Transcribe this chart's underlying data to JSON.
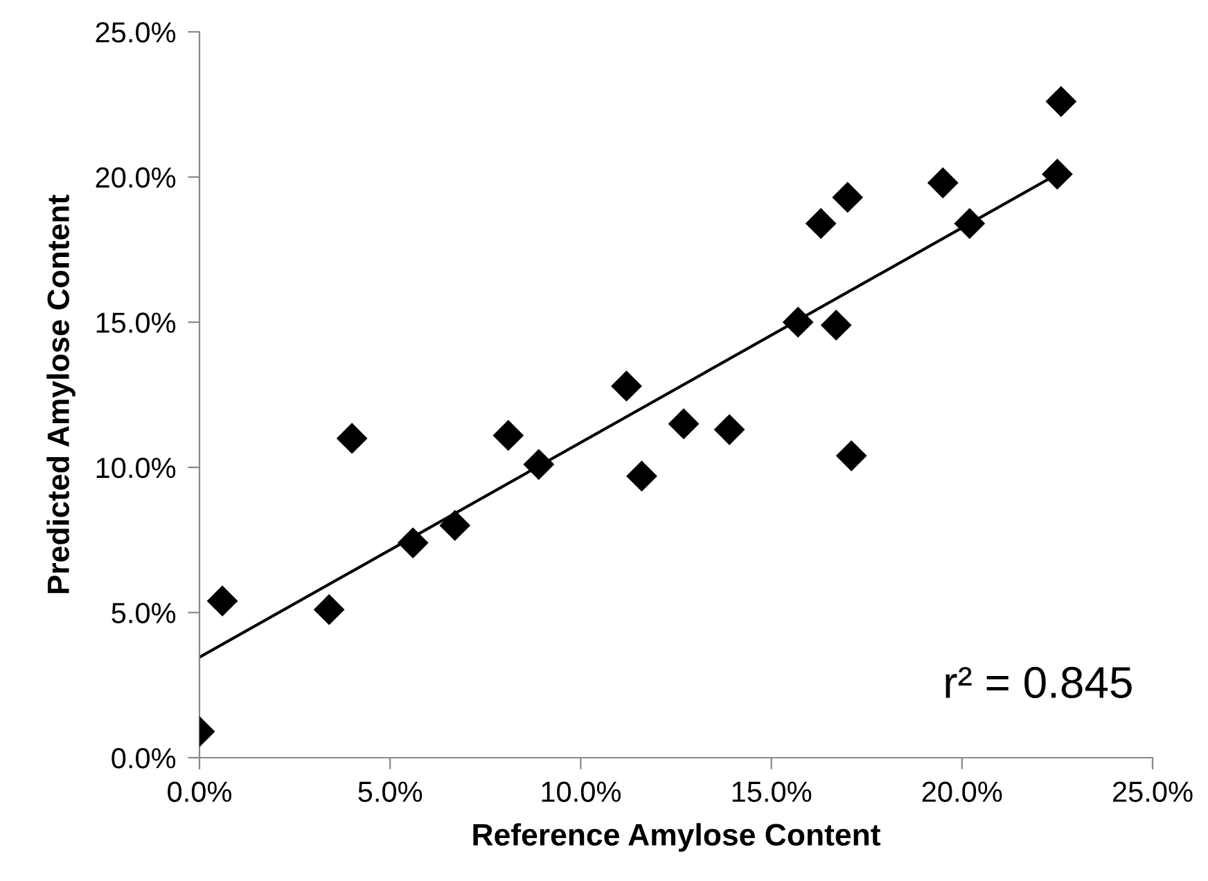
{
  "chart_data": {
    "type": "scatter",
    "xlabel": "Reference Amylose Content",
    "ylabel": "Predicted Amylose Content",
    "marker": "diamond",
    "grid": false,
    "legend": false,
    "xlim": [
      0,
      25
    ],
    "ylim": [
      0,
      25
    ],
    "xticks": [
      {
        "value": 0,
        "label": "0.0%"
      },
      {
        "value": 5,
        "label": "5.0%"
      },
      {
        "value": 10,
        "label": "10.0%"
      },
      {
        "value": 15,
        "label": "15.0%"
      },
      {
        "value": 20,
        "label": "20.0%"
      },
      {
        "value": 25,
        "label": "25.0%"
      }
    ],
    "yticks": [
      {
        "value": 0,
        "label": "0.0%"
      },
      {
        "value": 5,
        "label": "5.0%"
      },
      {
        "value": 10,
        "label": "10.0%"
      },
      {
        "value": 15,
        "label": "15.0%"
      },
      {
        "value": 20,
        "label": "20.0%"
      },
      {
        "value": 25,
        "label": "25.0%"
      }
    ],
    "annotations": [
      "r² = 0.845"
    ],
    "series": [
      {
        "color": "#000000",
        "x": [
          0.0,
          0.6,
          3.4,
          4.0,
          5.6,
          6.7,
          8.1,
          8.9,
          11.2,
          11.6,
          12.7,
          13.9,
          15.7,
          16.3,
          16.7,
          17.0,
          17.1,
          19.5,
          20.2,
          22.5,
          22.6
        ],
        "values": [
          0.9,
          5.4,
          5.1,
          11.0,
          7.4,
          8.0,
          11.1,
          10.1,
          12.8,
          9.7,
          11.5,
          11.3,
          15.0,
          18.4,
          14.9,
          19.3,
          10.4,
          19.8,
          18.4,
          20.1,
          22.6
        ]
      },
      {
        "type": "line",
        "color": "#000000",
        "marker": "none",
        "line_style": "solid",
        "x": [
          0.0,
          22.5
        ],
        "values": [
          3.46,
          20.1
        ]
      }
    ]
  }
}
